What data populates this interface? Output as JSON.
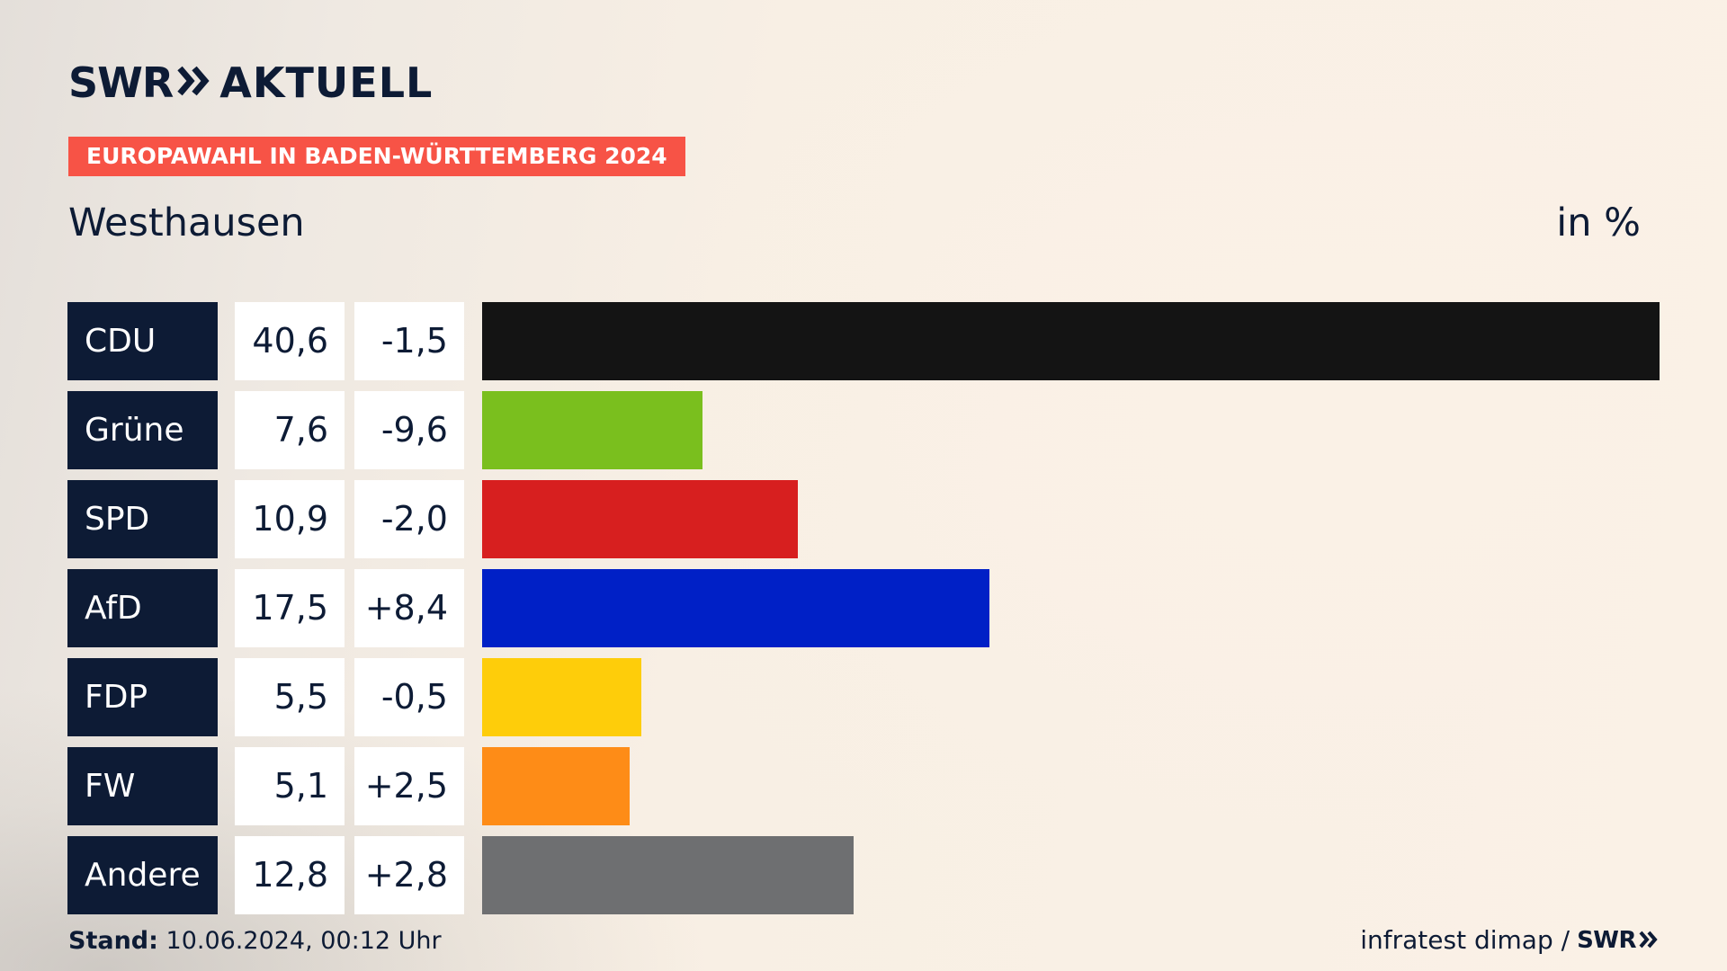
{
  "brand": {
    "logo_left": "SWR",
    "logo_right": "AKTUELL",
    "footer_logo": "SWR"
  },
  "badge": "EUROPAWAHL IN BADEN-WÜRTTEMBERG 2024",
  "place": "Westhausen",
  "unit": "in %",
  "footer": {
    "stand_label": "Stand:",
    "stand_value": "10.06.2024, 00:12 Uhr",
    "source": "infratest dimap /"
  },
  "colors": {
    "navy": "#0d1b35",
    "badge": "#f75346"
  },
  "chart_data": {
    "type": "bar",
    "orientation": "horizontal",
    "categories": [
      "CDU",
      "Grüne",
      "SPD",
      "AfD",
      "FDP",
      "FW",
      "Andere"
    ],
    "values": [
      40.6,
      7.6,
      10.9,
      17.5,
      5.5,
      5.1,
      12.8
    ],
    "value_labels": [
      "40,6",
      "7,6",
      "10,9",
      "17,5",
      "5,5",
      "5,1",
      "12,8"
    ],
    "changes": [
      -1.5,
      -9.6,
      -2.0,
      8.4,
      -0.5,
      2.5,
      2.8
    ],
    "change_labels": [
      "-1,5",
      "-9,6",
      "-2,0",
      "+8,4",
      "-0,5",
      "+2,5",
      "+2,8"
    ],
    "colors": [
      "#141414",
      "#7abf1e",
      "#d71f1f",
      "#0020c6",
      "#fecd0a",
      "#fe8c17",
      "#6e6f71"
    ],
    "xlim": [
      0,
      40.6
    ],
    "grid": false,
    "legend": "none"
  }
}
